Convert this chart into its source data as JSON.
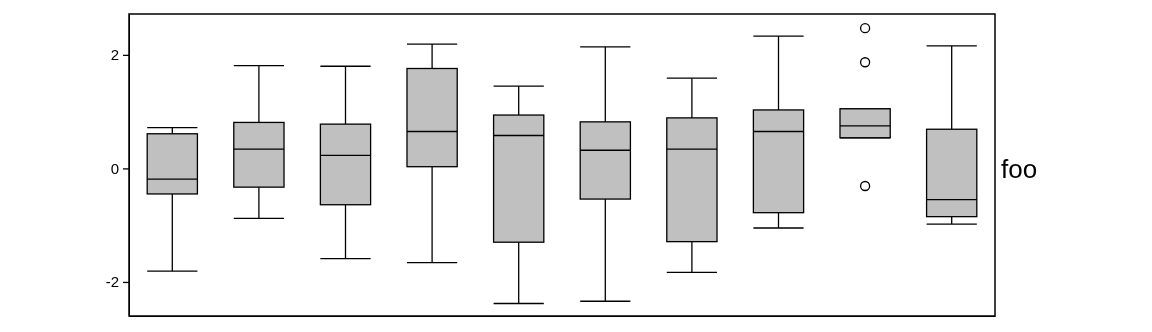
{
  "chart_data": {
    "type": "box",
    "categories": [
      null,
      null,
      null,
      null,
      null,
      null,
      null,
      null,
      null,
      null
    ],
    "color": "#c0c0c0",
    "ylim": [
      -2.6,
      2.72
    ],
    "yticks": [
      -2,
      0,
      2
    ],
    "tick_labels": "y",
    "grid": false,
    "annotations": [
      "foo"
    ],
    "boxes": [
      {
        "low": -1.81,
        "q1": -0.45,
        "median": -0.19,
        "q3": 0.61,
        "high": 0.72
      },
      {
        "low": -0.88,
        "q1": -0.33,
        "median": 0.34,
        "q3": 0.81,
        "high": 1.81
      },
      {
        "low": -1.59,
        "q1": -0.64,
        "median": 0.23,
        "q3": 0.78,
        "high": 1.8
      },
      {
        "low": -1.66,
        "q1": 0.03,
        "median": 0.65,
        "q3": 1.76,
        "high": 2.19
      },
      {
        "low": -2.38,
        "q1": -1.3,
        "median": 0.58,
        "q3": 0.94,
        "high": 1.45
      },
      {
        "low": -2.34,
        "q1": -0.54,
        "median": 0.32,
        "q3": 0.82,
        "high": 2.14
      },
      {
        "low": -1.83,
        "q1": -1.29,
        "median": 0.34,
        "q3": 0.89,
        "high": 1.59
      },
      {
        "low": -1.05,
        "q1": -0.78,
        "median": 0.65,
        "q3": 1.03,
        "high": 2.33
      },
      {
        "low": 0.54,
        "q1": 0.54,
        "median": 0.75,
        "q3": 1.05,
        "high": 1.05,
        "outliers": [
          2.47,
          1.87,
          -0.31
        ]
      },
      {
        "low": -0.98,
        "q1": -0.85,
        "median": -0.55,
        "q3": 0.69,
        "high": 2.16
      }
    ]
  }
}
